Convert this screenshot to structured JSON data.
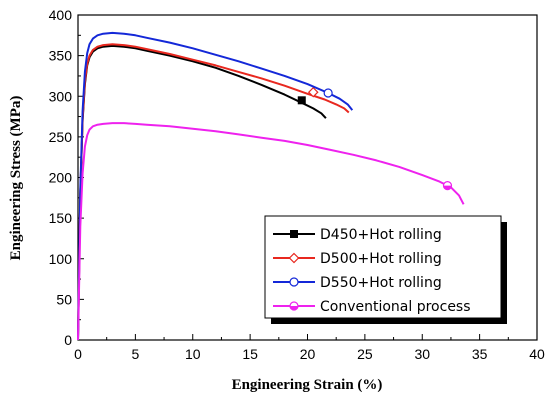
{
  "chart_data": {
    "type": "line",
    "xlabel": "Engineering Strain (%)",
    "ylabel": "Engineering Stress (MPa)",
    "xlim": [
      0,
      40
    ],
    "ylim": [
      0,
      400
    ],
    "xticks": [
      0,
      5,
      10,
      15,
      20,
      25,
      30,
      35,
      40
    ],
    "yticks": [
      0,
      50,
      100,
      150,
      200,
      250,
      300,
      350,
      400
    ],
    "grid": false,
    "legend_position": "bottom-right",
    "series": [
      {
        "name": "D450+Hot rolling",
        "color": "#000000",
        "marker": "filled-square",
        "marker_point": [
          19.5,
          295
        ],
        "x": [
          0,
          0.2,
          0.4,
          0.6,
          0.8,
          1.0,
          1.3,
          1.7,
          2.2,
          3.0,
          4.0,
          5.0,
          6.0,
          8.0,
          10.0,
          12.0,
          14.0,
          16.0,
          18.0,
          19.5,
          20.5,
          21.2,
          21.6
        ],
        "y": [
          0,
          180,
          270,
          315,
          338,
          348,
          355,
          359,
          361,
          362,
          361,
          359,
          356,
          350,
          343,
          335,
          325,
          314,
          302,
          292,
          285,
          279,
          273
        ]
      },
      {
        "name": "D500+Hot rolling",
        "color": "#e8281f",
        "marker": "open-diamond",
        "marker_point": [
          20.5,
          305
        ],
        "x": [
          0,
          0.2,
          0.4,
          0.6,
          0.8,
          1.0,
          1.3,
          1.7,
          2.2,
          3.0,
          4.0,
          5.0,
          6.0,
          8.0,
          10.0,
          12.0,
          14.0,
          16.0,
          18.0,
          20.0,
          21.5,
          22.5,
          23.2,
          23.6
        ],
        "y": [
          0,
          180,
          272,
          318,
          340,
          350,
          357,
          361,
          363,
          364,
          363,
          361,
          358,
          352,
          345,
          338,
          330,
          322,
          313,
          303,
          296,
          290,
          285,
          280
        ]
      },
      {
        "name": "D550+Hot rolling",
        "color": "#1428d8",
        "marker": "open-circle",
        "marker_point": [
          21.8,
          304
        ],
        "x": [
          0,
          0.2,
          0.4,
          0.6,
          0.8,
          1.0,
          1.3,
          1.7,
          2.2,
          3.0,
          4.0,
          5.0,
          6.0,
          8.0,
          10.0,
          12.0,
          14.0,
          16.0,
          18.0,
          20.0,
          21.8,
          22.8,
          23.5,
          23.9
        ],
        "y": [
          0,
          185,
          282,
          330,
          353,
          364,
          371,
          375,
          377,
          378,
          377,
          375,
          372,
          366,
          359,
          351,
          343,
          334,
          325,
          315,
          304,
          297,
          290,
          283
        ]
      },
      {
        "name": "Conventional process",
        "color": "#ee22ee",
        "marker": "half-filled-circle",
        "marker_point": [
          32.2,
          190
        ],
        "x": [
          0,
          0.2,
          0.4,
          0.6,
          0.8,
          1.0,
          1.3,
          1.7,
          2.2,
          3.0,
          4.0,
          5.0,
          6.0,
          8.0,
          10.0,
          12.0,
          14.0,
          16.0,
          18.0,
          20.0,
          22.0,
          24.0,
          26.0,
          28.0,
          30.0,
          31.5,
          32.5,
          33.2,
          33.6
        ],
        "y": [
          0,
          140,
          205,
          238,
          252,
          259,
          263,
          265,
          266,
          267,
          267,
          266,
          265,
          263,
          260,
          257,
          253,
          249,
          245,
          240,
          234,
          228,
          221,
          213,
          203,
          195,
          188,
          178,
          167
        ]
      }
    ]
  }
}
